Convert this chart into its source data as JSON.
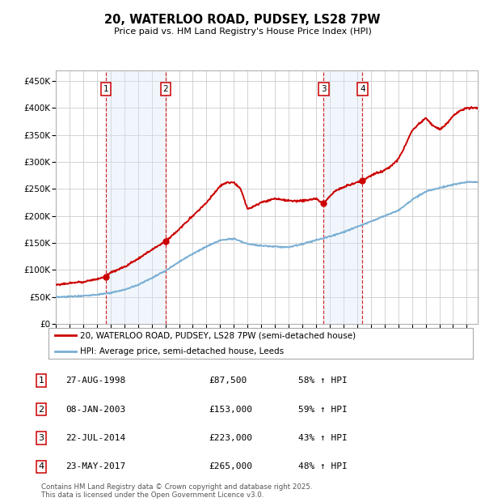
{
  "title": "20, WATERLOO ROAD, PUDSEY, LS28 7PW",
  "subtitle": "Price paid vs. HM Land Registry's House Price Index (HPI)",
  "ylabel_ticks": [
    "£0",
    "£50K",
    "£100K",
    "£150K",
    "£200K",
    "£250K",
    "£300K",
    "£350K",
    "£400K",
    "£450K"
  ],
  "ylim": [
    0,
    470000
  ],
  "xlim_start": 1995.0,
  "xlim_end": 2025.8,
  "sales": [
    {
      "label": "1",
      "date_num": 1998.65,
      "price": 87500,
      "date_str": "27-AUG-1998",
      "pct": "58% ↑ HPI"
    },
    {
      "label": "2",
      "date_num": 2003.02,
      "price": 153000,
      "date_str": "08-JAN-2003",
      "pct": "59% ↑ HPI"
    },
    {
      "label": "3",
      "date_num": 2014.55,
      "price": 223000,
      "date_str": "22-JUL-2014",
      "pct": "43% ↑ HPI"
    },
    {
      "label": "4",
      "date_num": 2017.39,
      "price": 265000,
      "date_str": "23-MAY-2017",
      "pct": "48% ↑ HPI"
    }
  ],
  "property_color": "#cc0000",
  "hpi_color": "#7aafd4",
  "background_color": "#ffffff",
  "plot_bg_color": "#ffffff",
  "grid_color": "#cccccc",
  "shade_color": "#d6e8f5",
  "footnote": "Contains HM Land Registry data © Crown copyright and database right 2025.\nThis data is licensed under the Open Government Licence v3.0.",
  "legend_property": "20, WATERLOO ROAD, PUDSEY, LS28 7PW (semi-detached house)",
  "legend_hpi": "HPI: Average price, semi-detached house, Leeds",
  "table_rows": [
    [
      "1",
      "27-AUG-1998",
      "£87,500",
      "58% ↑ HPI"
    ],
    [
      "2",
      "08-JAN-2003",
      "£153,000",
      "59% ↑ HPI"
    ],
    [
      "3",
      "22-JUL-2014",
      "£223,000",
      "43% ↑ HPI"
    ],
    [
      "4",
      "23-MAY-2017",
      "£265,000",
      "48% ↑ HPI"
    ]
  ],
  "hpi_years": [
    1995,
    1996,
    1997,
    1998,
    1999,
    2000,
    2001,
    2002,
    2003,
    2004,
    2005,
    2006,
    2007,
    2008,
    2009,
    2010,
    2011,
    2012,
    2013,
    2014,
    2015,
    2016,
    2017,
    2018,
    2019,
    2020,
    2021,
    2022,
    2023,
    2024,
    2025
  ],
  "hpi_vals": [
    49000,
    50500,
    52000,
    54000,
    57000,
    63000,
    72000,
    85000,
    98000,
    115000,
    130000,
    143000,
    155000,
    158000,
    148000,
    145000,
    143000,
    142000,
    148000,
    155000,
    162000,
    170000,
    180000,
    190000,
    200000,
    210000,
    230000,
    245000,
    252000,
    258000,
    263000
  ],
  "prop_years": [
    1995,
    1996,
    1997,
    1998,
    1998.65,
    1999,
    2000,
    2001,
    2002,
    2003.02,
    2004,
    2005,
    2006,
    2007,
    2007.5,
    2008,
    2008.5,
    2009,
    2009.5,
    2010,
    2011,
    2012,
    2013,
    2013.5,
    2014,
    2014.55,
    2015,
    2015.5,
    2016,
    2016.5,
    2017,
    2017.39,
    2018,
    2019,
    2019.5,
    2020,
    2020.5,
    2021,
    2021.5,
    2022,
    2022.5,
    2023,
    2023.5,
    2024,
    2024.5,
    2025
  ],
  "prop_vals": [
    72000,
    75000,
    78000,
    83000,
    87500,
    95000,
    105000,
    120000,
    137000,
    153000,
    175000,
    200000,
    225000,
    255000,
    262000,
    262000,
    250000,
    212000,
    218000,
    225000,
    232000,
    228000,
    228000,
    230000,
    232000,
    223000,
    237000,
    248000,
    253000,
    258000,
    262000,
    265000,
    275000,
    285000,
    293000,
    305000,
    330000,
    358000,
    370000,
    382000,
    368000,
    360000,
    370000,
    385000,
    395000,
    400000
  ]
}
